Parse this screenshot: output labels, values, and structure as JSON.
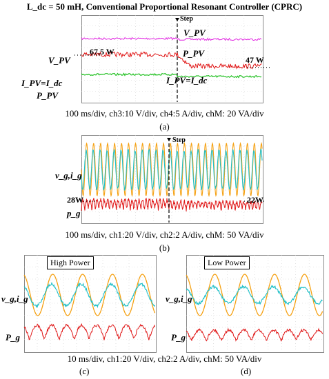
{
  "title": "L_dc = 50 mH, Conventional Proportional Resonant Controller (CPRC)",
  "panel_a": {
    "step": "Step",
    "vpv_top": "V_PV",
    "vpv_left": "V_PV",
    "ppv_mid": "P_PV",
    "ipv_left": "I_PV=I_dc",
    "ipv_mid": "I_PV=I_dc",
    "ppv_left": "P_PV",
    "power_before": "67.5 W",
    "power_after": "47 W",
    "caption": "100 ms/div, ch3:10 V/div, ch4:5 A/div, chM: 20 VA/div",
    "letter": "(a)"
  },
  "panel_b": {
    "step": "Step",
    "vgig": "v_g,i_g",
    "pg": "p_g",
    "power_before": "28W",
    "power_after": "22W",
    "caption": "100 ms/div, ch1:20 V/div, ch2:2 A/div, chM: 50 VA/div",
    "letter": "(b)"
  },
  "panel_c": {
    "box": "High Power",
    "vgig": "v_g,i_g",
    "pg": "P_g",
    "letter": "(c)"
  },
  "panel_d": {
    "box": "Low Power",
    "vgig": "v_g,i_g",
    "pg": "P_g",
    "letter": "(d)"
  },
  "caption_cd": "10 ms/div, ch1:20 V/div, ch2:2 A/div, chM: 50 VA/div",
  "colors": {
    "magenta": "#e020e0",
    "red": "#e01818",
    "green": "#20c020",
    "orange": "#f5a010",
    "cyan": "#20c0c8"
  }
}
